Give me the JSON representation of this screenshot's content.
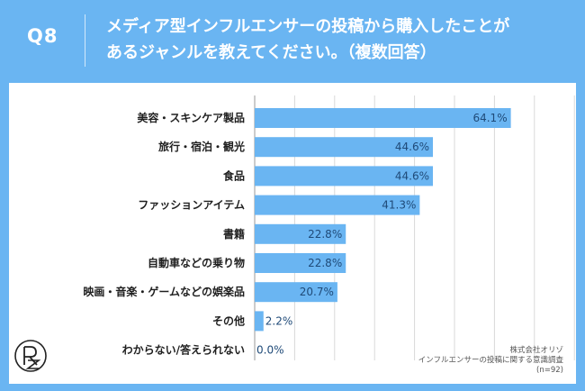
{
  "header": {
    "question_label": "Q8",
    "title_line1": "メディア型インフルエンサーの投稿から購入したことが",
    "title_line2": "あるジャンルを教えてください。（複数回答）"
  },
  "source": {
    "line1": "株式会社オリゾ",
    "line2": "インフルエンサーの投稿に関する意識調査",
    "line3": "(n=92)"
  },
  "colors": {
    "background": "#6ab5f2",
    "bar": "#6ab5f2",
    "panel": "#ffffff",
    "grid": "#d9d9d9"
  },
  "logo_icon": "orizo-logo-icon",
  "chart_data": {
    "type": "bar",
    "orientation": "horizontal",
    "categories": [
      "美容・スキンケア製品",
      "旅行・宿泊・観光",
      "食品",
      "ファッションアイテム",
      "書籍",
      "自動車などの乗り物",
      "映画・音楽・ゲームなどの娯楽品",
      "その他",
      "わからない/答えられない"
    ],
    "values": [
      64.1,
      44.6,
      44.6,
      41.3,
      22.8,
      22.8,
      20.7,
      2.2,
      0.0
    ],
    "value_labels": [
      "64.1%",
      "44.6%",
      "44.6%",
      "41.3%",
      "22.8%",
      "22.8%",
      "20.7%",
      "2.2%",
      "0.0%"
    ],
    "xlim": [
      0,
      100
    ],
    "grid": true,
    "legend": "none"
  }
}
